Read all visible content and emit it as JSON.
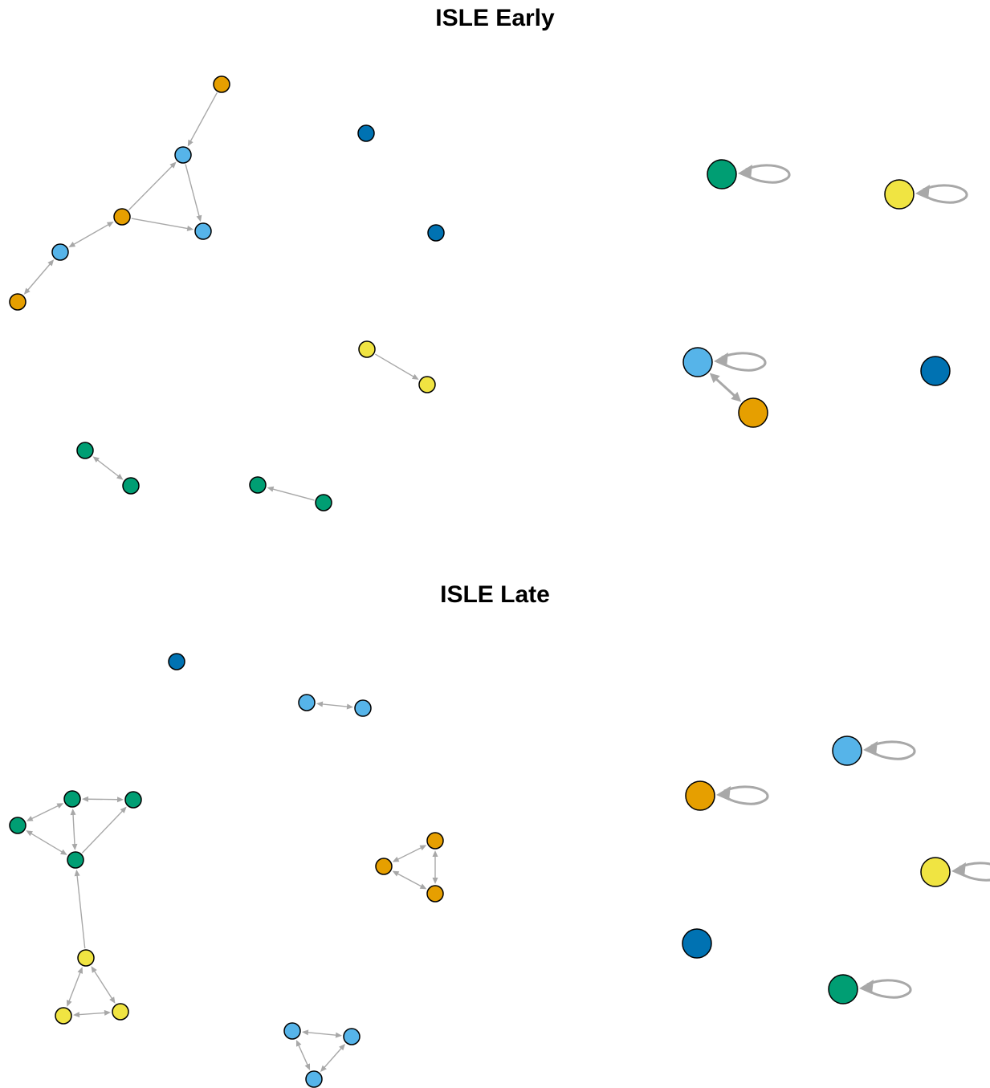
{
  "colors": {
    "orange": "#E69F00",
    "sky_blue": "#56B4E9",
    "blue": "#0072B2",
    "green": "#009E73",
    "yellow": "#F0E442",
    "edge": "#A8A8A8",
    "node_stroke": "#000000"
  },
  "panels": [
    {
      "title": "ISLE Early",
      "nodes": [
        {
          "id": "e1",
          "color": "orange"
        },
        {
          "id": "e2",
          "color": "sky_blue"
        },
        {
          "id": "e3",
          "color": "orange"
        },
        {
          "id": "e4",
          "color": "sky_blue"
        },
        {
          "id": "e5",
          "color": "sky_blue"
        },
        {
          "id": "e6",
          "color": "orange"
        },
        {
          "id": "e7",
          "color": "blue"
        },
        {
          "id": "e8",
          "color": "blue"
        },
        {
          "id": "e9",
          "color": "yellow"
        },
        {
          "id": "e10",
          "color": "yellow"
        },
        {
          "id": "e11",
          "color": "green"
        },
        {
          "id": "e12",
          "color": "green"
        },
        {
          "id": "e13",
          "color": "green"
        },
        {
          "id": "e14",
          "color": "green"
        },
        {
          "id": "e15",
          "color": "green",
          "self_loop": true
        },
        {
          "id": "e16",
          "color": "yellow",
          "self_loop": true
        },
        {
          "id": "e17",
          "color": "sky_blue",
          "self_loop": true
        },
        {
          "id": "e18",
          "color": "orange"
        },
        {
          "id": "e19",
          "color": "blue"
        }
      ],
      "edges": [
        {
          "from": "e1",
          "to": "e2",
          "dir": "forward"
        },
        {
          "from": "e3",
          "to": "e2",
          "dir": "forward"
        },
        {
          "from": "e2",
          "to": "e5",
          "dir": "forward"
        },
        {
          "from": "e3",
          "to": "e5",
          "dir": "forward"
        },
        {
          "from": "e3",
          "to": "e4",
          "dir": "both"
        },
        {
          "from": "e4",
          "to": "e6",
          "dir": "both"
        },
        {
          "from": "e9",
          "to": "e10",
          "dir": "forward"
        },
        {
          "from": "e11",
          "to": "e12",
          "dir": "both"
        },
        {
          "from": "e14",
          "to": "e13",
          "dir": "forward"
        },
        {
          "from": "e17",
          "to": "e18",
          "dir": "both",
          "weight": "heavy"
        }
      ]
    },
    {
      "title": "ISLE Late",
      "nodes": [
        {
          "id": "l1",
          "color": "blue"
        },
        {
          "id": "l2",
          "color": "sky_blue"
        },
        {
          "id": "l3",
          "color": "sky_blue"
        },
        {
          "id": "l4",
          "color": "green"
        },
        {
          "id": "l5",
          "color": "green"
        },
        {
          "id": "l6",
          "color": "green"
        },
        {
          "id": "l7",
          "color": "green"
        },
        {
          "id": "l8",
          "color": "yellow"
        },
        {
          "id": "l9",
          "color": "yellow"
        },
        {
          "id": "l10",
          "color": "yellow"
        },
        {
          "id": "l11",
          "color": "orange"
        },
        {
          "id": "l12",
          "color": "orange"
        },
        {
          "id": "l13",
          "color": "orange"
        },
        {
          "id": "l14",
          "color": "sky_blue"
        },
        {
          "id": "l15",
          "color": "sky_blue"
        },
        {
          "id": "l16",
          "color": "sky_blue"
        },
        {
          "id": "l17",
          "color": "sky_blue",
          "self_loop": true
        },
        {
          "id": "l18",
          "color": "orange",
          "self_loop": true
        },
        {
          "id": "l19",
          "color": "yellow",
          "self_loop": true
        },
        {
          "id": "l20",
          "color": "blue"
        },
        {
          "id": "l21",
          "color": "green",
          "self_loop": true
        }
      ],
      "edges": [
        {
          "from": "l2",
          "to": "l3",
          "dir": "both"
        },
        {
          "from": "l4",
          "to": "l5",
          "dir": "both"
        },
        {
          "from": "l4",
          "to": "l6",
          "dir": "both"
        },
        {
          "from": "l4",
          "to": "l7",
          "dir": "both"
        },
        {
          "from": "l6",
          "to": "l7",
          "dir": "both"
        },
        {
          "from": "l7",
          "to": "l5",
          "dir": "forward"
        },
        {
          "from": "l8",
          "to": "l7",
          "dir": "forward"
        },
        {
          "from": "l8",
          "to": "l9",
          "dir": "both"
        },
        {
          "from": "l8",
          "to": "l10",
          "dir": "both"
        },
        {
          "from": "l9",
          "to": "l10",
          "dir": "both"
        },
        {
          "from": "l11",
          "to": "l12",
          "dir": "both"
        },
        {
          "from": "l11",
          "to": "l13",
          "dir": "both"
        },
        {
          "from": "l12",
          "to": "l13",
          "dir": "both"
        },
        {
          "from": "l14",
          "to": "l15",
          "dir": "both"
        },
        {
          "from": "l14",
          "to": "l16",
          "dir": "both"
        },
        {
          "from": "l15",
          "to": "l16",
          "dir": "both"
        }
      ]
    }
  ]
}
